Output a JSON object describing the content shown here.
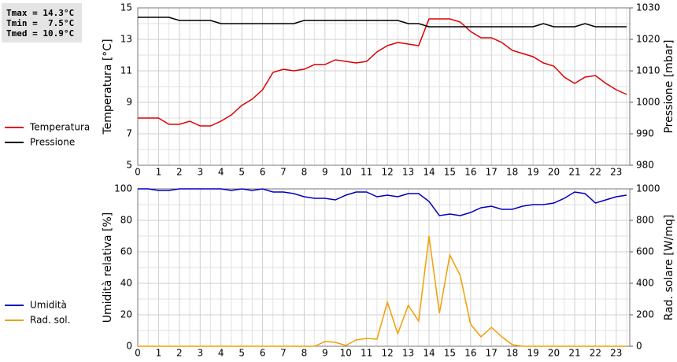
{
  "chart_data": [
    {
      "type": "line",
      "ylabel": "Temperatura [°C]",
      "y2label": "Pressione [mbar]",
      "annotations": [
        "Tmax = 14.3°C",
        "Tmin =  7.5°C",
        "Tmed = 10.9°C"
      ],
      "x": [
        0,
        0.5,
        1,
        1.5,
        2,
        2.5,
        3,
        3.5,
        4,
        4.5,
        5,
        5.5,
        6,
        6.5,
        7,
        7.5,
        8,
        8.5,
        9,
        9.5,
        10,
        10.5,
        11,
        11.5,
        12,
        12.5,
        13,
        13.5,
        14,
        14.5,
        15,
        15.5,
        16,
        16.5,
        17,
        17.5,
        18,
        18.5,
        19,
        19.5,
        20,
        20.5,
        21,
        21.5,
        22,
        22.5,
        23,
        23.5
      ],
      "xlim": [
        0,
        23.65
      ],
      "xticks": [
        0,
        1,
        2,
        3,
        4,
        5,
        6,
        7,
        8,
        9,
        10,
        11,
        12,
        13,
        14,
        15,
        16,
        17,
        18,
        19,
        20,
        21,
        22,
        23
      ],
      "ylim": [
        5,
        15
      ],
      "yticks": [
        5,
        7,
        9,
        11,
        13,
        15
      ],
      "y2lim": [
        980,
        1030
      ],
      "y2ticks": [
        980,
        990,
        1000,
        1010,
        1020,
        1030
      ],
      "grid": true,
      "series": [
        {
          "name": "Temperatura",
          "color": "#dd0000",
          "axis": "y",
          "values": [
            8.0,
            8.0,
            8.0,
            7.6,
            7.6,
            7.8,
            7.5,
            7.5,
            7.8,
            8.2,
            8.8,
            9.2,
            9.8,
            10.9,
            11.1,
            11.0,
            11.1,
            11.4,
            11.4,
            11.7,
            11.6,
            11.5,
            11.6,
            12.2,
            12.6,
            12.8,
            12.7,
            12.6,
            14.3,
            14.3,
            14.3,
            14.1,
            13.5,
            13.1,
            13.1,
            12.8,
            12.3,
            12.1,
            11.9,
            11.5,
            11.3,
            10.6,
            10.2,
            10.6,
            10.7,
            10.2,
            9.8,
            9.5
          ]
        },
        {
          "name": "Pressione",
          "color": "#000000",
          "axis": "y2",
          "values": [
            1027,
            1027,
            1027,
            1027,
            1026,
            1026,
            1026,
            1026,
            1025,
            1025,
            1025,
            1025,
            1025,
            1025,
            1025,
            1025,
            1026,
            1026,
            1026,
            1026,
            1026,
            1026,
            1026,
            1026,
            1026,
            1026,
            1025,
            1025,
            1024,
            1024,
            1024,
            1024,
            1024,
            1024,
            1024,
            1024,
            1024,
            1024,
            1024,
            1025,
            1024,
            1024,
            1024,
            1025,
            1024,
            1024,
            1024,
            1024
          ]
        }
      ]
    },
    {
      "type": "line",
      "ylabel": "Umidità relativa [%]",
      "y2label": "Rad. solare [W/mq]",
      "x": [
        0,
        0.5,
        1,
        1.5,
        2,
        2.5,
        3,
        3.5,
        4,
        4.5,
        5,
        5.5,
        6,
        6.5,
        7,
        7.5,
        8,
        8.5,
        9,
        9.5,
        10,
        10.5,
        11,
        11.5,
        12,
        12.5,
        13,
        13.5,
        14,
        14.5,
        15,
        15.5,
        16,
        16.5,
        17,
        17.5,
        18,
        18.5,
        19,
        19.5,
        20,
        20.5,
        21,
        21.5,
        22,
        22.5,
        23,
        23.5
      ],
      "xlim": [
        0,
        23.65
      ],
      "xticks": [
        0,
        1,
        2,
        3,
        4,
        5,
        6,
        7,
        8,
        9,
        10,
        11,
        12,
        13,
        14,
        15,
        16,
        17,
        18,
        19,
        20,
        21,
        22,
        23
      ],
      "ylim": [
        0,
        100
      ],
      "yticks": [
        0,
        20,
        40,
        60,
        80,
        100
      ],
      "y2lim": [
        0,
        1000
      ],
      "y2ticks": [
        0,
        200,
        400,
        600,
        800,
        1000
      ],
      "grid": true,
      "series": [
        {
          "name": "Umidità",
          "color": "#0000bb",
          "axis": "y",
          "values": [
            100,
            100,
            99,
            99,
            100,
            100,
            100,
            100,
            100,
            99,
            100,
            99,
            100,
            98,
            98,
            97,
            95,
            94,
            94,
            93,
            96,
            98,
            98,
            95,
            96,
            95,
            97,
            97,
            92,
            83,
            84,
            83,
            85,
            88,
            89,
            87,
            87,
            89,
            90,
            90,
            91,
            94,
            98,
            97,
            91,
            93,
            95,
            96
          ]
        },
        {
          "name": "Rad. sol.",
          "color": "#f0a000",
          "axis": "y2",
          "values": [
            0,
            0,
            0,
            0,
            0,
            0,
            0,
            0,
            0,
            0,
            0,
            0,
            0,
            0,
            0,
            0,
            0,
            0,
            30,
            25,
            5,
            40,
            50,
            45,
            280,
            80,
            260,
            160,
            700,
            210,
            580,
            450,
            140,
            60,
            120,
            60,
            10,
            0,
            0,
            0,
            0,
            0,
            0,
            0,
            0,
            0,
            0,
            0
          ]
        }
      ]
    }
  ]
}
